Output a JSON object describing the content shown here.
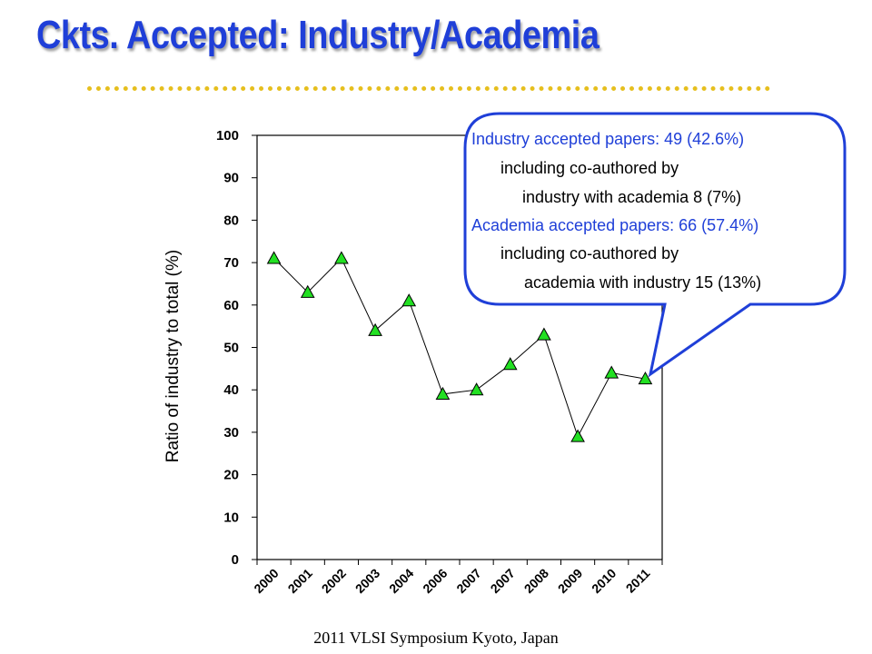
{
  "title": "Ckts. Accepted: Industry/Academia",
  "footer": "2011 VLSI Symposium Kyoto, Japan",
  "colors": {
    "title": "#1f3fd8",
    "divider": "#e6bf1e",
    "marker": "#22e022",
    "callout_border": "#1f3fd8",
    "callout_accent": "#1f3fd8"
  },
  "callout": {
    "lines": [
      {
        "text": "Industry accepted papers:  49 (42.6%)",
        "accent": true
      },
      {
        "text": "including co-authored by",
        "accent": false
      },
      {
        "text": "industry with academia  8 (7%)",
        "accent": false
      },
      {
        "text": "Academia accepted papers: 66 (57.4%)",
        "accent": true
      },
      {
        "text": "including co-authored by",
        "accent": false
      },
      {
        "text": "academia with industry 15 (13%)",
        "accent": false
      }
    ]
  },
  "chart_data": {
    "type": "line",
    "ylabel": "Ratio of industry to total (%)",
    "xlabel": "",
    "ylim": [
      0,
      100
    ],
    "yticks": [
      0,
      10,
      20,
      30,
      40,
      50,
      60,
      70,
      80,
      90,
      100
    ],
    "categories": [
      "2000",
      "2001",
      "2002",
      "2003",
      "2004",
      "2006",
      "2007",
      "2007",
      "2008",
      "2009",
      "2010",
      "2011"
    ],
    "values": [
      71,
      63,
      71,
      54,
      61,
      39,
      40,
      46,
      53,
      29,
      44,
      42.6
    ],
    "grid": false,
    "marker": "triangle"
  }
}
